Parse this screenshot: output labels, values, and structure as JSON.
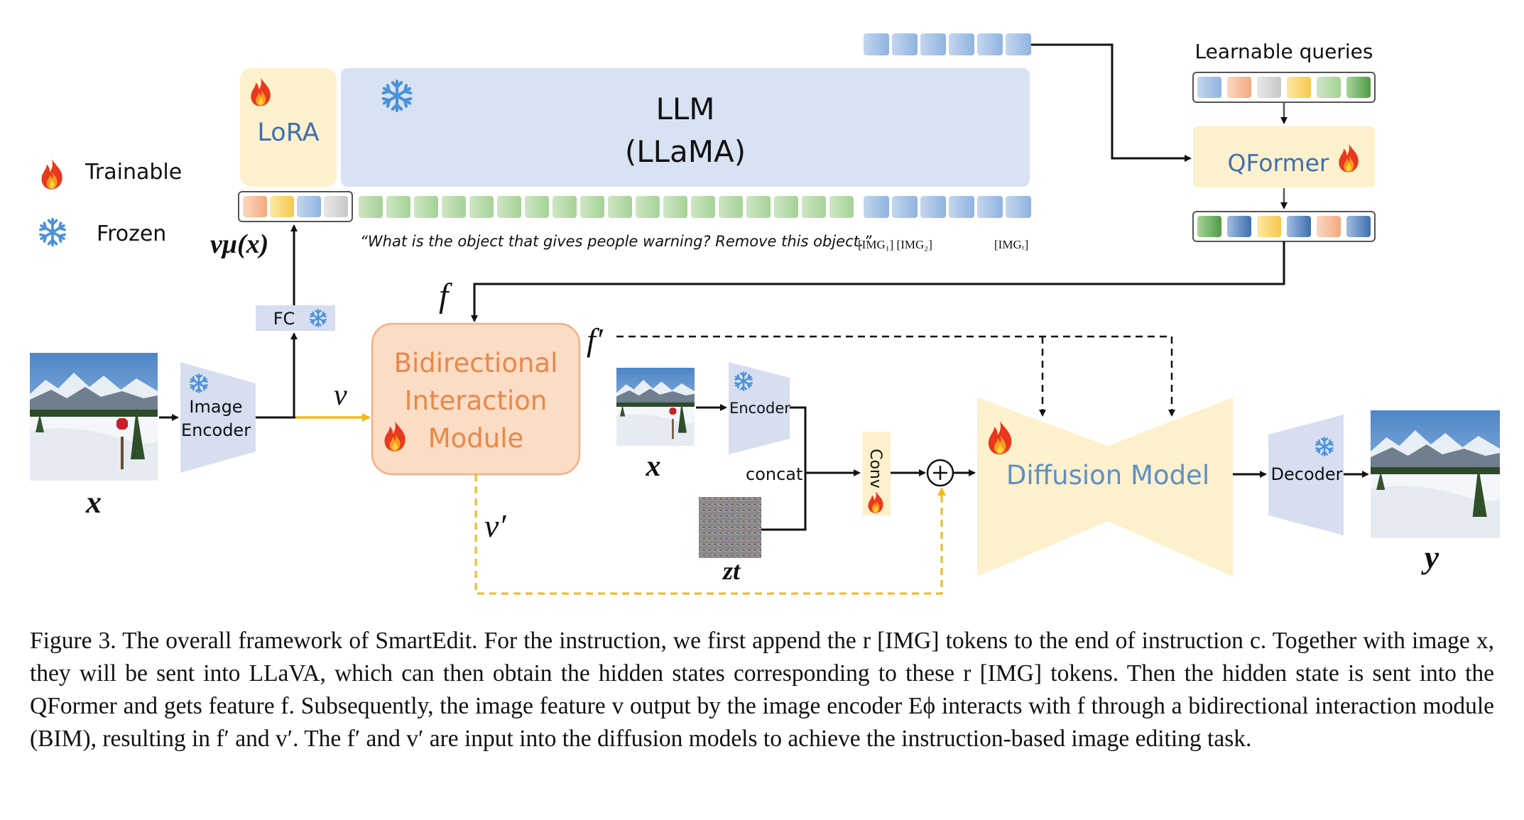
{
  "legend": {
    "trainable": "Trainable",
    "frozen": "Frozen"
  },
  "llm": {
    "title": "LLM",
    "subtitle": "(LLaMA)"
  },
  "lora": {
    "label": "LoRA"
  },
  "qformer": {
    "label": "QFormer",
    "queries_label": "Learnable queries"
  },
  "prompt": {
    "text": "“What is the object that gives people warning? Remove this object.”",
    "img_tokens": "[IMG₁] [IMG₂]",
    "img_last": "[IMGᵣ]"
  },
  "labels": {
    "v_mu": "vμ(x)",
    "fc": "FC",
    "image_encoder": [
      "Image",
      "Encoder"
    ],
    "bim": [
      "Bidirectional",
      "Interaction",
      "Module"
    ],
    "v": "v",
    "f": "f",
    "f_prime": "f′",
    "v_prime": "v′",
    "x": "x",
    "encoder": "Encoder",
    "concat": "concat",
    "conv": "Conv",
    "z_t": "zt",
    "diffusion": "Diffusion Model",
    "decoder": "Decoder",
    "y": "y"
  },
  "caption": "Figure 3. The overall framework of SmartEdit. For the instruction, we first append the r [IMG] tokens to the end of instruction c. Together with image x, they will be sent into LLaVA, which can then obtain the hidden states corresponding to these r [IMG] tokens. Then the hidden state is sent into the QFormer and gets feature f. Subsequently, the image feature v output by the image encoder Eϕ interacts with f through a bidirectional interaction module (BIM), resulting in f′ and v′. The f′ and v′ are input into the diffusion models to achieve the instruction-based image editing task.",
  "colors": {
    "llm_fill": "#d9e2f2",
    "lora_fill": "#fdf0cc",
    "bim_fill": "#fbdcc4",
    "bim_text": "#e8884a",
    "diffusion_fill": "#fdf0cc",
    "diffusion_text": "#5b8fc9",
    "encoder_fill": "#d6def0",
    "yellow_arrow": "#f2b81c"
  },
  "icons": [
    "flame-icon",
    "snowflake-icon",
    "stop-sign-photo",
    "noise-image"
  ]
}
